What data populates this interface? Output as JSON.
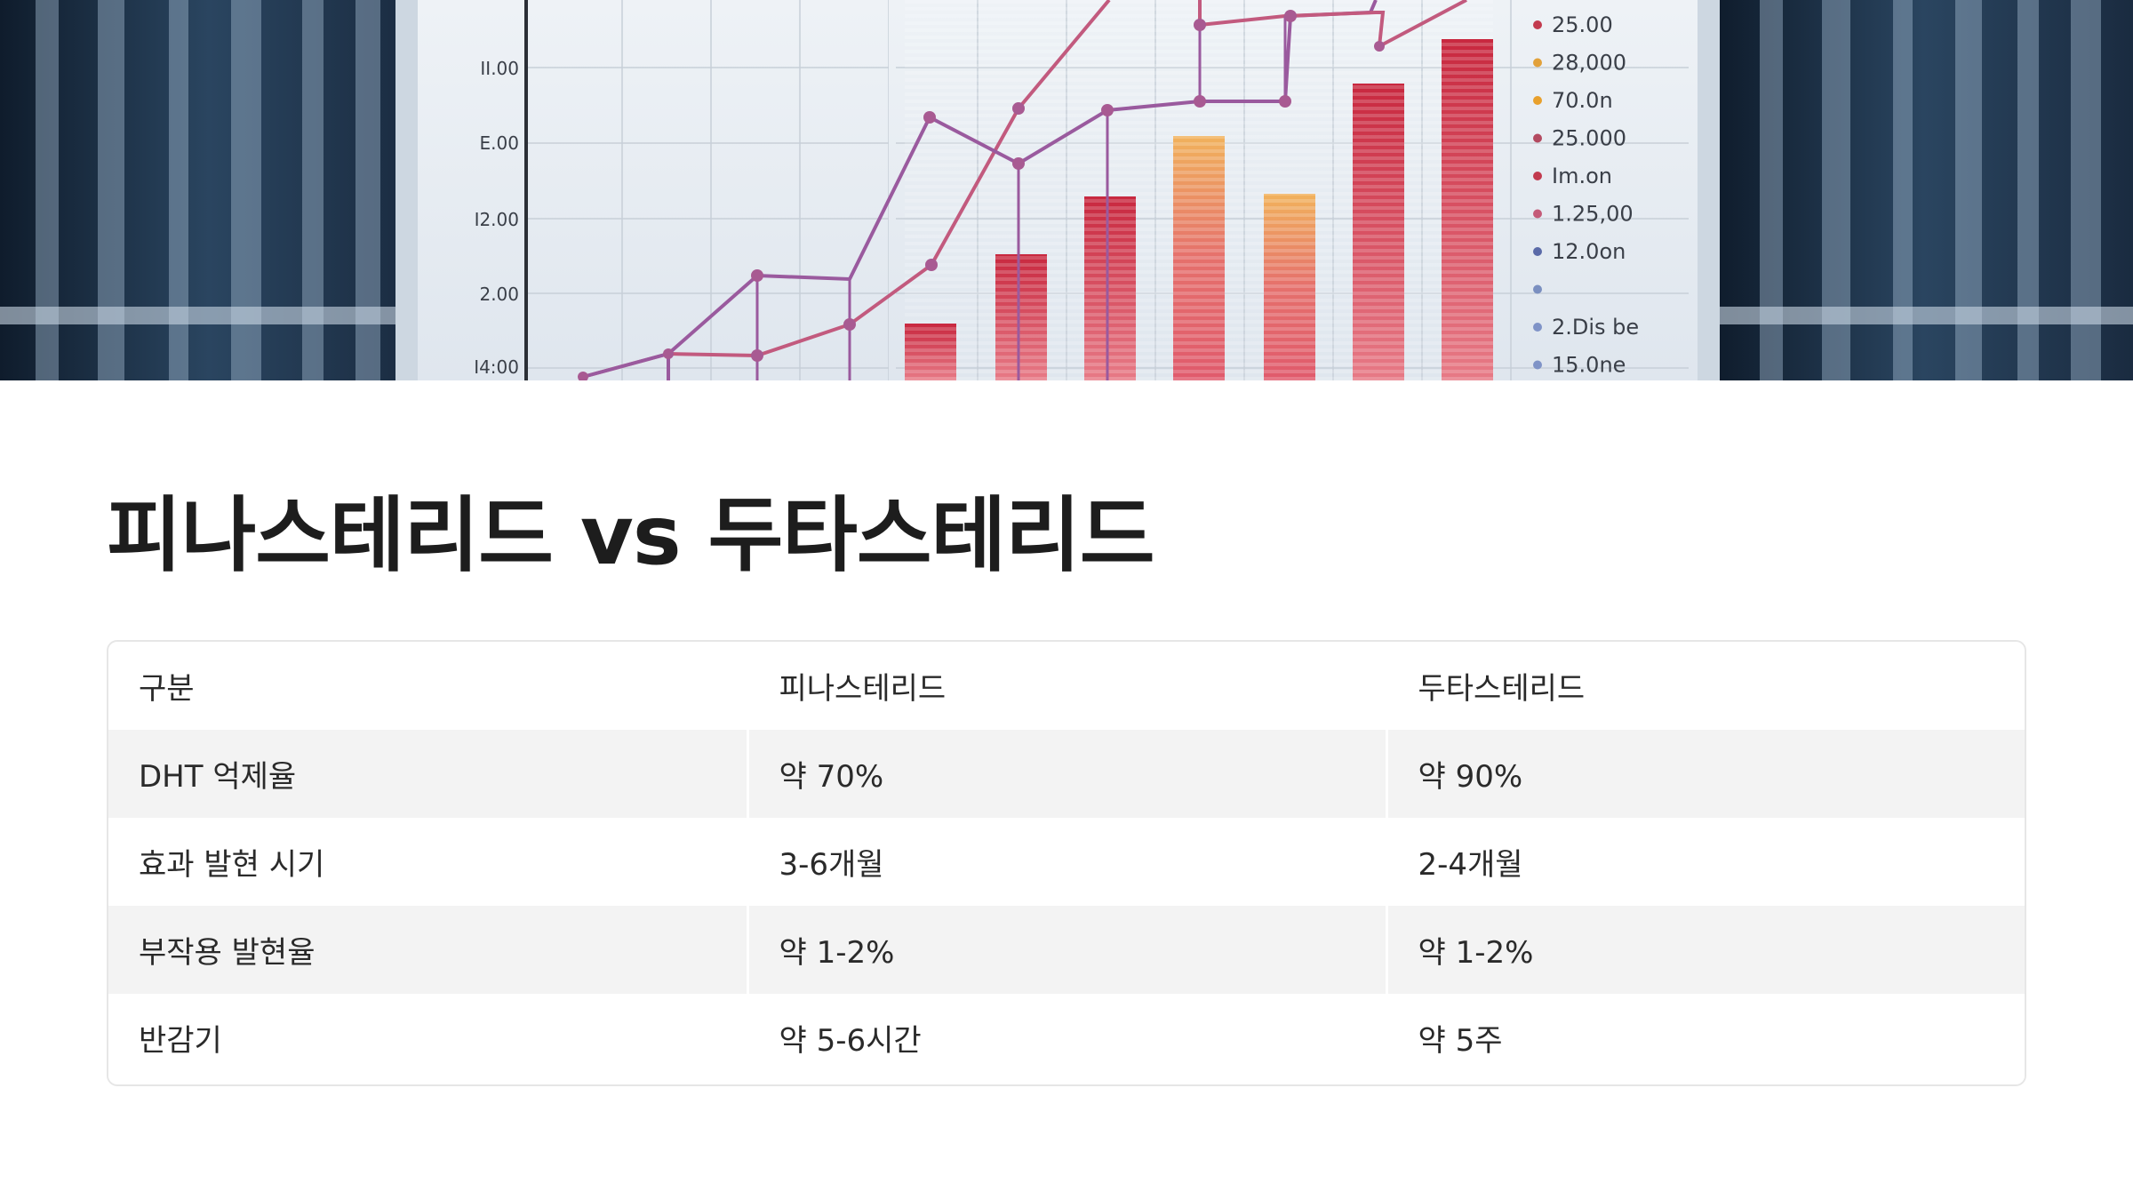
{
  "hero": {
    "axis_labels": [
      "II.00",
      "E.00",
      "I2.00",
      "2.00",
      "I4:00"
    ],
    "legend_entries": [
      {
        "text": "25.00",
        "color": "#c23a4e"
      },
      {
        "text": "28,000",
        "color": "#e2a13a"
      },
      {
        "text": "70.0n",
        "color": "#e8a02c"
      },
      {
        "text": "25.000",
        "color": "#b34a60"
      },
      {
        "text": "Im.on",
        "color": "#c23a4e"
      },
      {
        "text": "1.25,00",
        "color": "#c45a78"
      },
      {
        "text": "12.0on",
        "color": "#5a6aa8"
      },
      {
        "text": "",
        "color": "#7a8fc0"
      },
      {
        "text": "2.Dis be",
        "color": "#7f93c7"
      },
      {
        "text": "15.0ne",
        "color": "#7f93c7"
      }
    ],
    "colors": {
      "bar_red": "#d9475d",
      "bar_orange": "#eda35a",
      "line_pink": "#c25a7e",
      "line_violet": "#9a5a9e",
      "dot": "#a85a92"
    }
  },
  "title": "피나스테리드 vs 두타스테리드",
  "table": {
    "headers": [
      "구분",
      "피나스테리드",
      "두타스테리드"
    ],
    "rows": [
      [
        "DHT 억제율",
        "약 70%",
        "약 90%"
      ],
      [
        "효과 발현 시기",
        "3-6개월",
        "2-4개월"
      ],
      [
        "부작용 발현율",
        "약 1-2%",
        "약 1-2%"
      ],
      [
        "반감기",
        "약 5-6시간",
        "약 5주"
      ]
    ]
  }
}
